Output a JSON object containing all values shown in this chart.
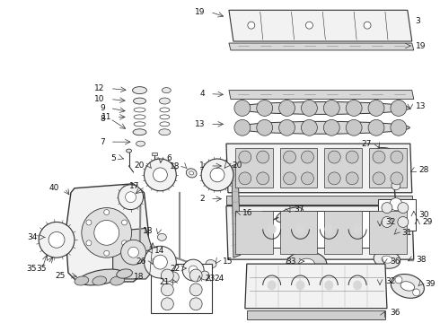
{
  "background_color": "#ffffff",
  "fig_width": 4.9,
  "fig_height": 3.6,
  "dpi": 100,
  "label_color": "#111111",
  "line_color": "#333333",
  "fill_light": "#e8e8e8",
  "fill_lighter": "#f2f2f2",
  "fill_white": "#ffffff"
}
